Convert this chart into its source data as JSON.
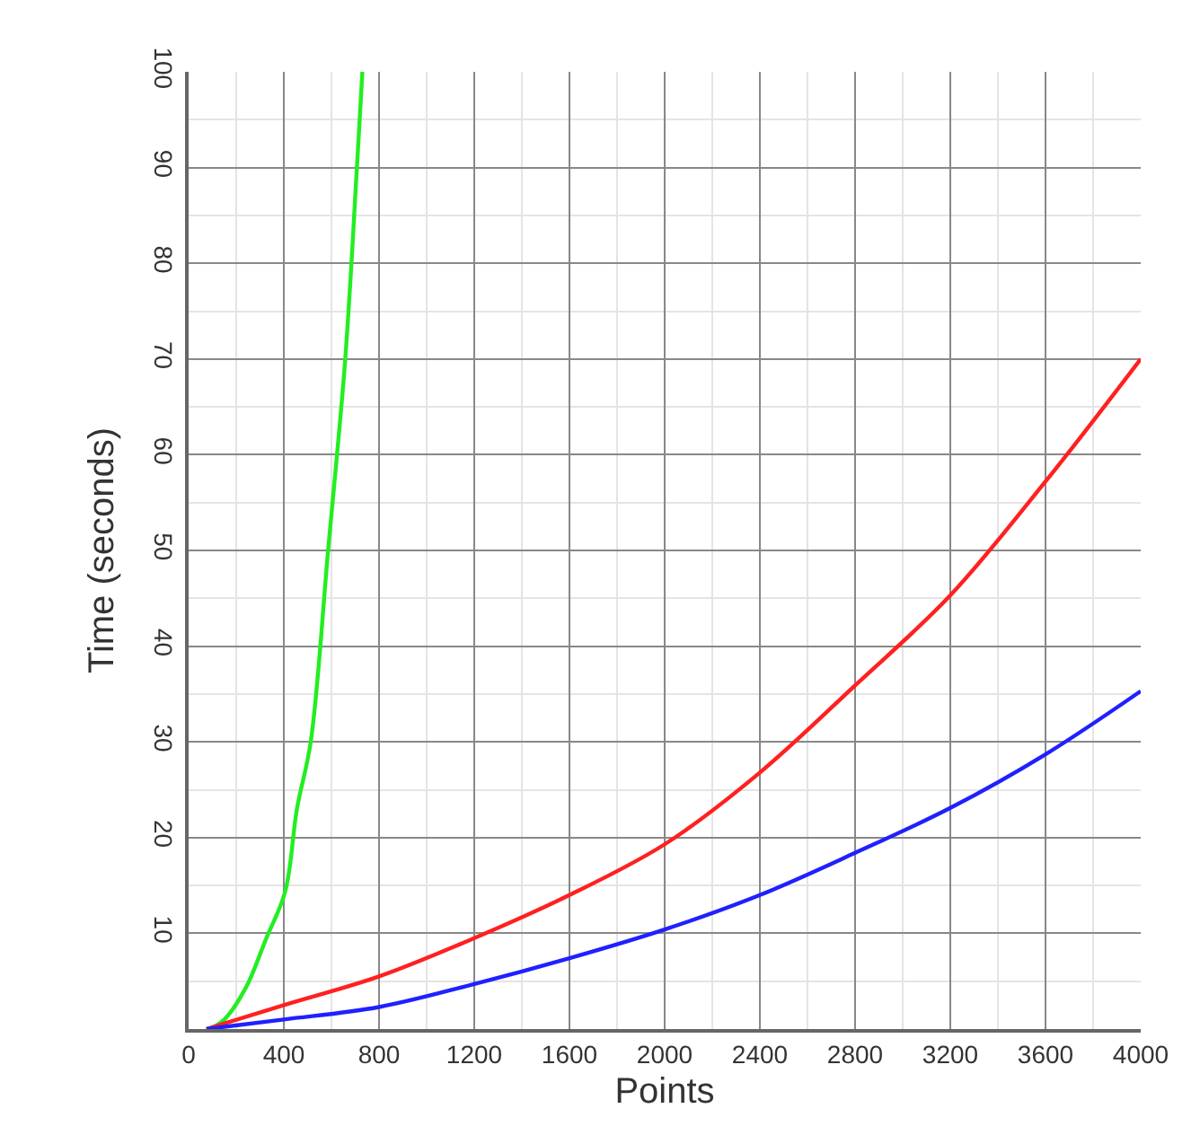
{
  "chart_data": {
    "type": "line",
    "xlabel": "Points",
    "ylabel": "Time (seconds)",
    "xlim": [
      0,
      4000
    ],
    "ylim": [
      0,
      100
    ],
    "xticks": [
      0,
      400,
      800,
      1200,
      1600,
      2000,
      2400,
      2800,
      3200,
      3600,
      4000
    ],
    "yticks": [
      10,
      20,
      30,
      40,
      50,
      60,
      70,
      80,
      90,
      100
    ],
    "grid": true,
    "marker": "none",
    "line_style": "solid",
    "series": [
      {
        "color": "#22ee22",
        "x": [
          90,
          150,
          240,
          325,
          406,
          455,
          513,
          586,
          658,
          707,
          730
        ],
        "values": [
          0,
          1,
          4.3,
          9.4,
          14.4,
          23,
          30,
          50,
          70,
          90,
          100
        ]
      },
      {
        "color": "#ff2020",
        "x": [
          75,
          400,
          800,
          1200,
          1600,
          2000,
          2400,
          2800,
          3200,
          3600,
          4000
        ],
        "values": [
          0,
          2.5,
          5.5,
          9.5,
          14,
          19.3,
          26.8,
          35.9,
          45.3,
          57.2,
          70
        ]
      },
      {
        "color": "#2020ff",
        "x": [
          75,
          400,
          800,
          1200,
          1600,
          2000,
          2400,
          2800,
          3200,
          3600,
          4000
        ],
        "values": [
          0,
          1,
          2.3,
          4.7,
          7.4,
          10.4,
          14,
          18.4,
          23.1,
          28.7,
          35.3
        ]
      }
    ]
  }
}
